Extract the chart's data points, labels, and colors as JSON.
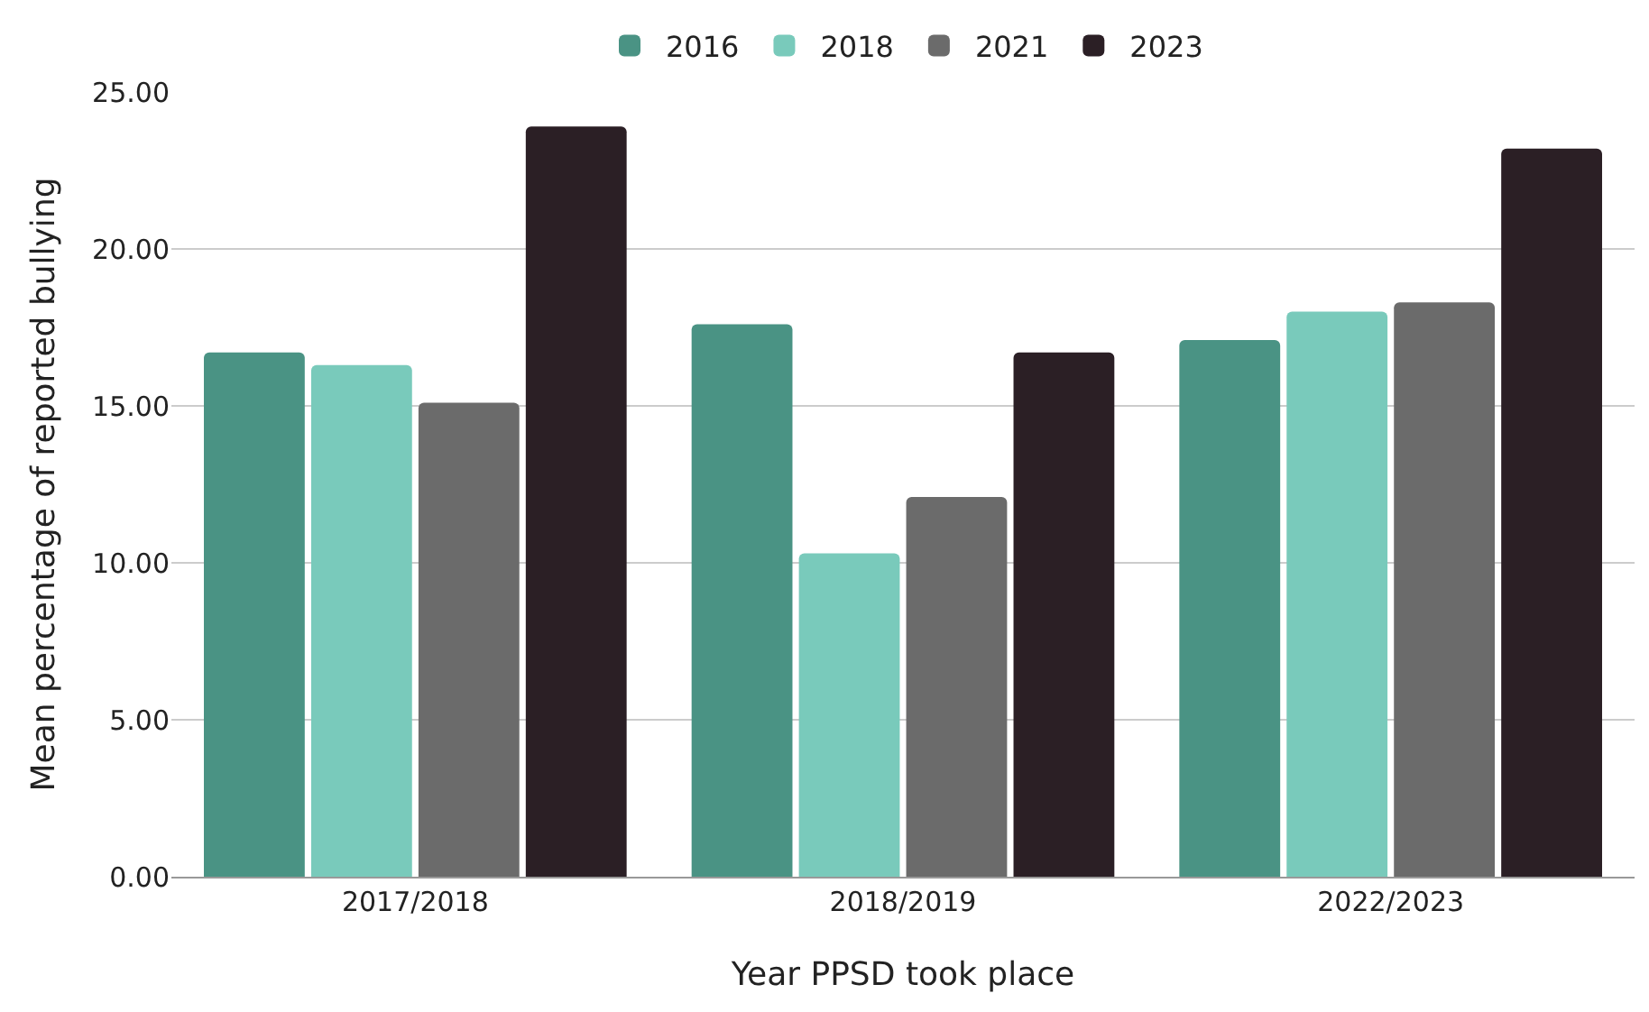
{
  "chart_data": {
    "type": "bar",
    "categories": [
      "2017/2018",
      "2018/2019",
      "2022/2023"
    ],
    "series": [
      {
        "name": "2016",
        "color": "#4a9384",
        "values": [
          16.7,
          17.6,
          17.1
        ]
      },
      {
        "name": "2018",
        "color": "#79cabb",
        "values": [
          16.3,
          10.3,
          18.0
        ]
      },
      {
        "name": "2021",
        "color": "#6b6b6b",
        "values": [
          15.1,
          12.1,
          18.3
        ]
      },
      {
        "name": "2023",
        "color": "#2b1f25",
        "values": [
          23.9,
          16.7,
          23.2
        ]
      }
    ],
    "xlabel": "Year PPSD took place",
    "ylabel": "Mean percentage of reported bullying",
    "ylim": [
      0,
      25
    ],
    "yticks": [
      {
        "value": 0,
        "label": "0.00"
      },
      {
        "value": 5,
        "label": "5.00"
      },
      {
        "value": 10,
        "label": "10.00"
      },
      {
        "value": 15,
        "label": "15.00"
      },
      {
        "value": 20,
        "label": "20.00"
      },
      {
        "value": 25,
        "label": "25.00"
      }
    ],
    "grid": "y",
    "legend": "top"
  }
}
